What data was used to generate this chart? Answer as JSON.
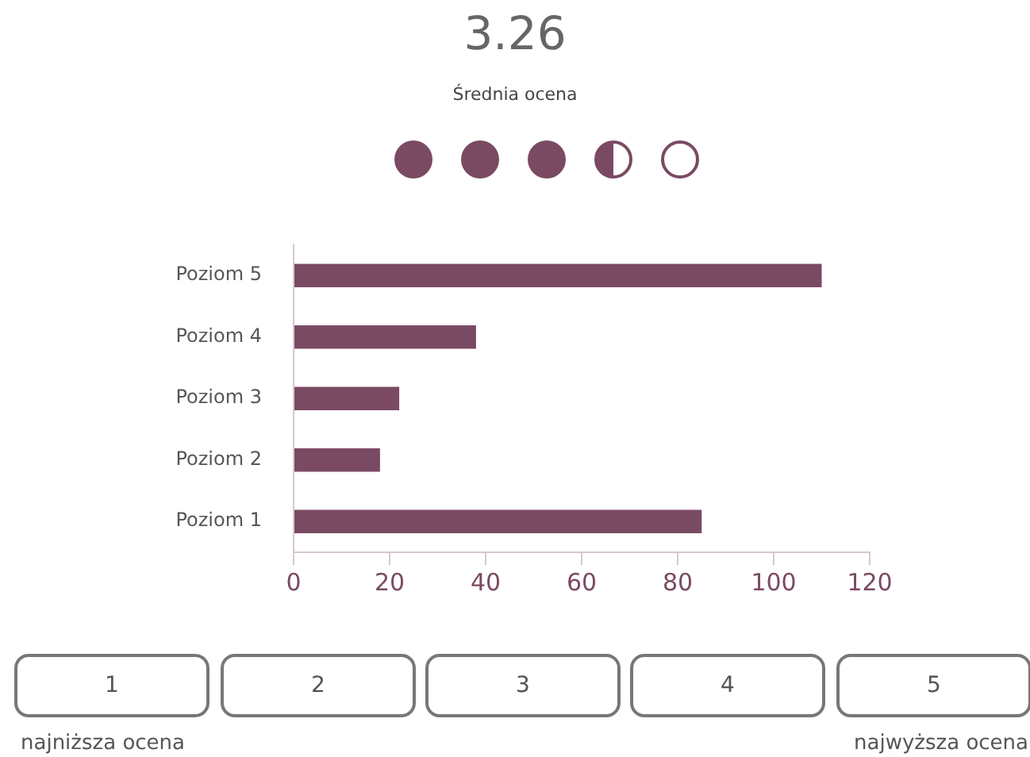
{
  "chart_data": {
    "type": "bar",
    "orientation": "horizontal",
    "title": "3.26",
    "subtitle": "Średnia ocena",
    "categories": [
      "Poziom 5",
      "Poziom 4",
      "Poziom 3",
      "Poziom 2",
      "Poziom 1"
    ],
    "values": [
      110,
      38,
      22,
      18,
      85
    ],
    "color": "#7a4a63",
    "xlim": [
      0,
      120
    ],
    "xticks": [
      0,
      20,
      40,
      60,
      80,
      100,
      120
    ],
    "grid": false,
    "legend": false,
    "annotations": [
      "1",
      "2",
      "3",
      "4",
      "5",
      "najniższa ocena",
      "najwyższa ocena"
    ]
  }
}
